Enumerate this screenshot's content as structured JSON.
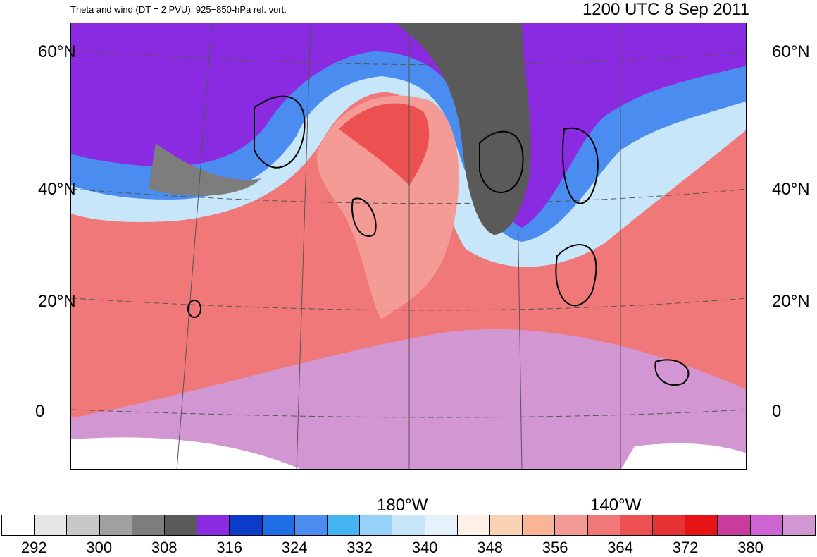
{
  "header": {
    "left_title": "Theta and wind (DT = 2 PVU); 925−850-hPa rel. vort.",
    "right_title": "1200 UTC 8 Sep 2011"
  },
  "map": {
    "lat_labels": [
      "60°N",
      "40°N",
      "20°N",
      "0"
    ],
    "lon_labels": [
      "180°W",
      "140°W"
    ]
  },
  "colorbar": {
    "colors": [
      "#ffffff",
      "#e6e6e6",
      "#c8c8c8",
      "#a0a0a0",
      "#7d7d7d",
      "#5a5a5a",
      "#8a2be2",
      "#0a3cc8",
      "#1e6ee6",
      "#4a8cf0",
      "#46b4f0",
      "#96d2f8",
      "#c8e6fa",
      "#e6f2fa",
      "#fcf0e8",
      "#fad2b4",
      "#fab496",
      "#f59b96",
      "#f07878",
      "#ec5050",
      "#e63232",
      "#e61414",
      "#c83ca0",
      "#cd64d2",
      "#d296d2"
    ],
    "tick_labels": [
      "292",
      "300",
      "308",
      "316",
      "324",
      "332",
      "340",
      "348",
      "356",
      "364",
      "372",
      "380"
    ]
  }
}
